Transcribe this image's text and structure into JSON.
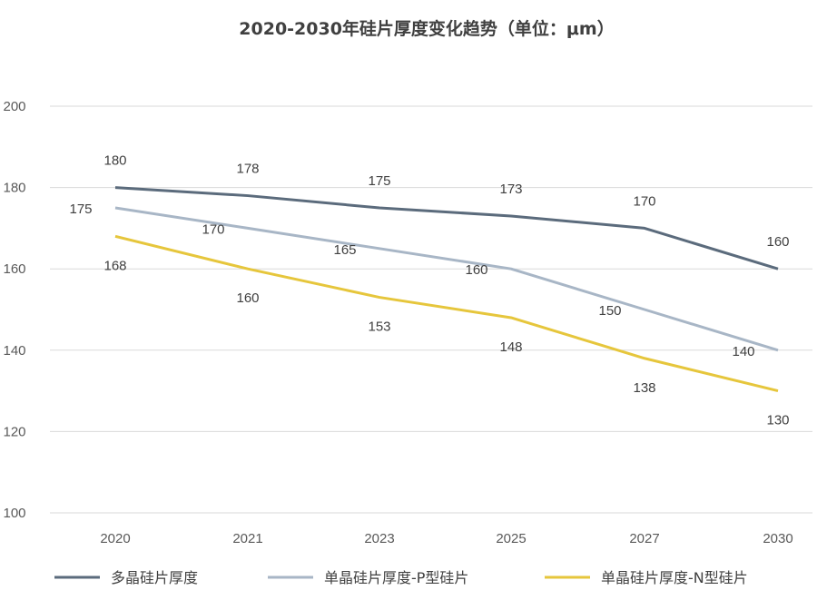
{
  "chart_data": {
    "type": "line",
    "title": "2020-2030年硅片厚度变化趋势（单位：μm）",
    "xlabel": "",
    "ylabel": "",
    "categories": [
      "2020",
      "2021",
      "2023",
      "2025",
      "2027",
      "2030"
    ],
    "ylim": [
      100,
      200
    ],
    "yticks": [
      100,
      120,
      140,
      160,
      180,
      200
    ],
    "grid": true,
    "legend_position": "bottom",
    "series": [
      {
        "name": "多晶硅片厚度",
        "values": [
          180,
          178,
          175,
          173,
          170,
          160
        ],
        "color": "#5b6b7c",
        "label_position": "above"
      },
      {
        "name": "单晶硅片厚度-P型硅片",
        "values": [
          175,
          170,
          165,
          160,
          150,
          140
        ],
        "color": "#a8b6c6",
        "label_position": "left"
      },
      {
        "name": "单晶硅片厚度-N型硅片",
        "values": [
          168,
          160,
          153,
          148,
          138,
          130
        ],
        "color": "#e6c63c",
        "label_position": "below"
      }
    ]
  }
}
